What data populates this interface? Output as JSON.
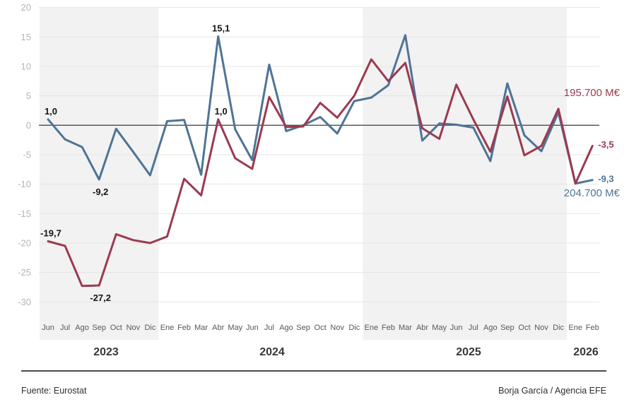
{
  "chart_data": {
    "type": "line",
    "categories": [
      "Jun",
      "Jul",
      "Ago",
      "Sep",
      "Oct",
      "Nov",
      "Dic",
      "Ene",
      "Feb",
      "Mar",
      "Abr",
      "May",
      "Jun",
      "Jul",
      "Ago",
      "Sep",
      "Oct",
      "Nov",
      "Dic",
      "Ene",
      "Feb",
      "Mar",
      "Abr",
      "May",
      "Jun",
      "Jul",
      "Ago",
      "Sep",
      "Oct",
      "Nov",
      "Dic",
      "Ene",
      "Feb"
    ],
    "year_groups": [
      {
        "label": "2023",
        "from": 0,
        "to": 6
      },
      {
        "label": "2024",
        "from": 7,
        "to": 18
      },
      {
        "label": "2025",
        "from": 19,
        "to": 30
      },
      {
        "label": "2026",
        "from": 31,
        "to": 32
      }
    ],
    "shaded_periods": [
      {
        "from": 0,
        "to": 6
      },
      {
        "from": 19,
        "to": 30
      }
    ],
    "ylim": [
      -30,
      20
    ],
    "ytick_step": 5,
    "grid": true,
    "legend_position": "none",
    "series": [
      {
        "name": "blue",
        "color": "#4e7496",
        "end_label": "204.700 M€",
        "values": [
          1.0,
          -2.4,
          -3.7,
          -9.2,
          -0.6,
          -4.5,
          -8.5,
          0.7,
          0.9,
          -8.4,
          15.1,
          -0.7,
          -5.9,
          10.3,
          -1.0,
          0.0,
          1.4,
          -1.4,
          4.1,
          4.7,
          6.8,
          15.3,
          -2.6,
          0.3,
          0.1,
          -0.4,
          -6.1,
          7.1,
          -1.7,
          -4.4,
          2.2,
          -9.9,
          -9.3
        ]
      },
      {
        "name": "red",
        "color": "#9b3a50",
        "end_label": "195.700 M€",
        "values": [
          -19.7,
          -20.5,
          -27.3,
          -27.2,
          -18.5,
          -19.5,
          -20.0,
          -18.9,
          -9.1,
          -11.9,
          1.0,
          -5.6,
          -7.4,
          4.8,
          -0.3,
          -0.2,
          3.8,
          1.3,
          5.0,
          11.2,
          7.5,
          10.6,
          -0.5,
          -2.3,
          6.9,
          1.0,
          -4.5,
          4.9,
          -5.1,
          -3.5,
          2.8,
          -9.9,
          -3.5
        ]
      }
    ],
    "annotations": [
      {
        "text": "1,0",
        "series": "blue",
        "index": 0,
        "placement": "above",
        "color": "black"
      },
      {
        "text": "-9,2",
        "series": "blue",
        "index": 3,
        "placement": "below",
        "color": "black"
      },
      {
        "text": "15,1",
        "series": "blue",
        "index": 10,
        "placement": "above",
        "color": "black"
      },
      {
        "text": "-19,7",
        "series": "red",
        "index": 0,
        "placement": "above",
        "color": "black"
      },
      {
        "text": "-27,2",
        "series": "red",
        "index": 3,
        "placement": "below",
        "color": "black"
      },
      {
        "text": "1,0",
        "series": "red",
        "index": 10,
        "placement": "above",
        "color": "black"
      },
      {
        "text": "-3,5",
        "series": "red",
        "index": 32,
        "placement": "right",
        "color": "series"
      },
      {
        "text": "-9,3",
        "series": "blue",
        "index": 32,
        "placement": "right",
        "color": "series"
      }
    ],
    "style": {
      "band": "#f2f2f2",
      "grid": "#e5e5e5",
      "zero_line": "#4d4d4d",
      "ytick_color": "#b4b4b4",
      "month_color": "#585858",
      "year_color": "#383838",
      "annotation_color": "#141414"
    }
  },
  "footer": {
    "source": "Fuente: Eurostat",
    "credit": "Borja García / Agencia EFE"
  }
}
